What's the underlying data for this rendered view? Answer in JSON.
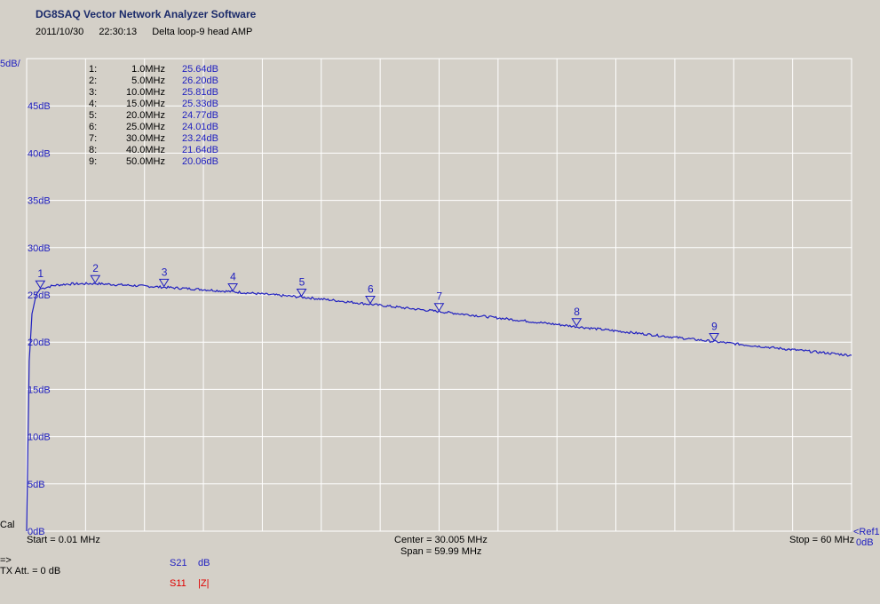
{
  "app_title": "DG8SAQ Vector Network Analyzer Software",
  "date": "2011/10/30",
  "time": "22:30:13",
  "measurement_name": "Delta loop-9 head AMP",
  "scale_label": "5dB/",
  "ref_label": "<Ref1",
  "ref_value": "0dB",
  "cal_label": "Cal",
  "start_label": "Start = 0.01 MHz",
  "center_label": "Center = 30.005 MHz",
  "span_label": "Span = 59.99 MHz",
  "stop_label": "Stop = 60 MHz",
  "arrow_label": "=>",
  "tx_att_label": "TX Att.  = 0 dB",
  "traces": [
    {
      "param": "S21",
      "format": "dB",
      "color": "#2020c0"
    },
    {
      "param": "S11",
      "format": "|Z|",
      "color": "#e00000"
    }
  ],
  "markers": [
    {
      "idx": "1:",
      "freq": "1.0MHz",
      "val": "25.64dB"
    },
    {
      "idx": "2:",
      "freq": "5.0MHz",
      "val": "26.20dB"
    },
    {
      "idx": "3:",
      "freq": "10.0MHz",
      "val": "25.81dB"
    },
    {
      "idx": "4:",
      "freq": "15.0MHz",
      "val": "25.33dB"
    },
    {
      "idx": "5:",
      "freq": "20.0MHz",
      "val": "24.77dB"
    },
    {
      "idx": "6:",
      "freq": "25.0MHz",
      "val": "24.01dB"
    },
    {
      "idx": "7:",
      "freq": "30.0MHz",
      "val": "23.24dB"
    },
    {
      "idx": "8:",
      "freq": "40.0MHz",
      "val": "21.64dB"
    },
    {
      "idx": "9:",
      "freq": "50.0MHz",
      "val": "20.06dB"
    }
  ],
  "chart_data": {
    "type": "line",
    "xlim": [
      0.01,
      60
    ],
    "ylim": [
      0,
      50
    ],
    "y_ticks": [
      {
        "v": 45,
        "label": "45dB"
      },
      {
        "v": 40,
        "label": "40dB"
      },
      {
        "v": 35,
        "label": "35dB"
      },
      {
        "v": 30,
        "label": "30dB"
      },
      {
        "v": 25,
        "label": "25dB"
      },
      {
        "v": 20,
        "label": "20dB"
      },
      {
        "v": 15,
        "label": "15dB"
      },
      {
        "v": 10,
        "label": "10dB"
      },
      {
        "v": 5,
        "label": "5dB"
      },
      {
        "v": 0,
        "label": "0dB"
      }
    ],
    "grid": true,
    "series": [
      {
        "name": "S21",
        "x": [
          0.01,
          0.1,
          0.2,
          0.4,
          0.7,
          1.0,
          2.0,
          3.0,
          5.0,
          7.0,
          10.0,
          12.5,
          15.0,
          17.5,
          20.0,
          22.5,
          25.0,
          27.5,
          30.0,
          35.0,
          40.0,
          45.0,
          50.0,
          55.0,
          60.0
        ],
        "y": [
          0.0,
          9.0,
          18.0,
          23.0,
          25.0,
          25.64,
          26.0,
          26.15,
          26.2,
          26.05,
          25.81,
          25.6,
          25.33,
          25.05,
          24.77,
          24.4,
          24.01,
          23.62,
          23.24,
          22.45,
          21.64,
          20.85,
          20.06,
          19.3,
          18.6
        ]
      }
    ],
    "markers": [
      {
        "label": "1",
        "x": 1.0,
        "y": 25.64
      },
      {
        "label": "2",
        "x": 5.0,
        "y": 26.2
      },
      {
        "label": "3",
        "x": 10.0,
        "y": 25.81
      },
      {
        "label": "4",
        "x": 15.0,
        "y": 25.33
      },
      {
        "label": "5",
        "x": 20.0,
        "y": 24.77
      },
      {
        "label": "6",
        "x": 25.0,
        "y": 24.01
      },
      {
        "label": "7",
        "x": 30.0,
        "y": 23.24
      },
      {
        "label": "8",
        "x": 40.0,
        "y": 21.64
      },
      {
        "label": "9",
        "x": 50.0,
        "y": 20.06
      }
    ]
  }
}
